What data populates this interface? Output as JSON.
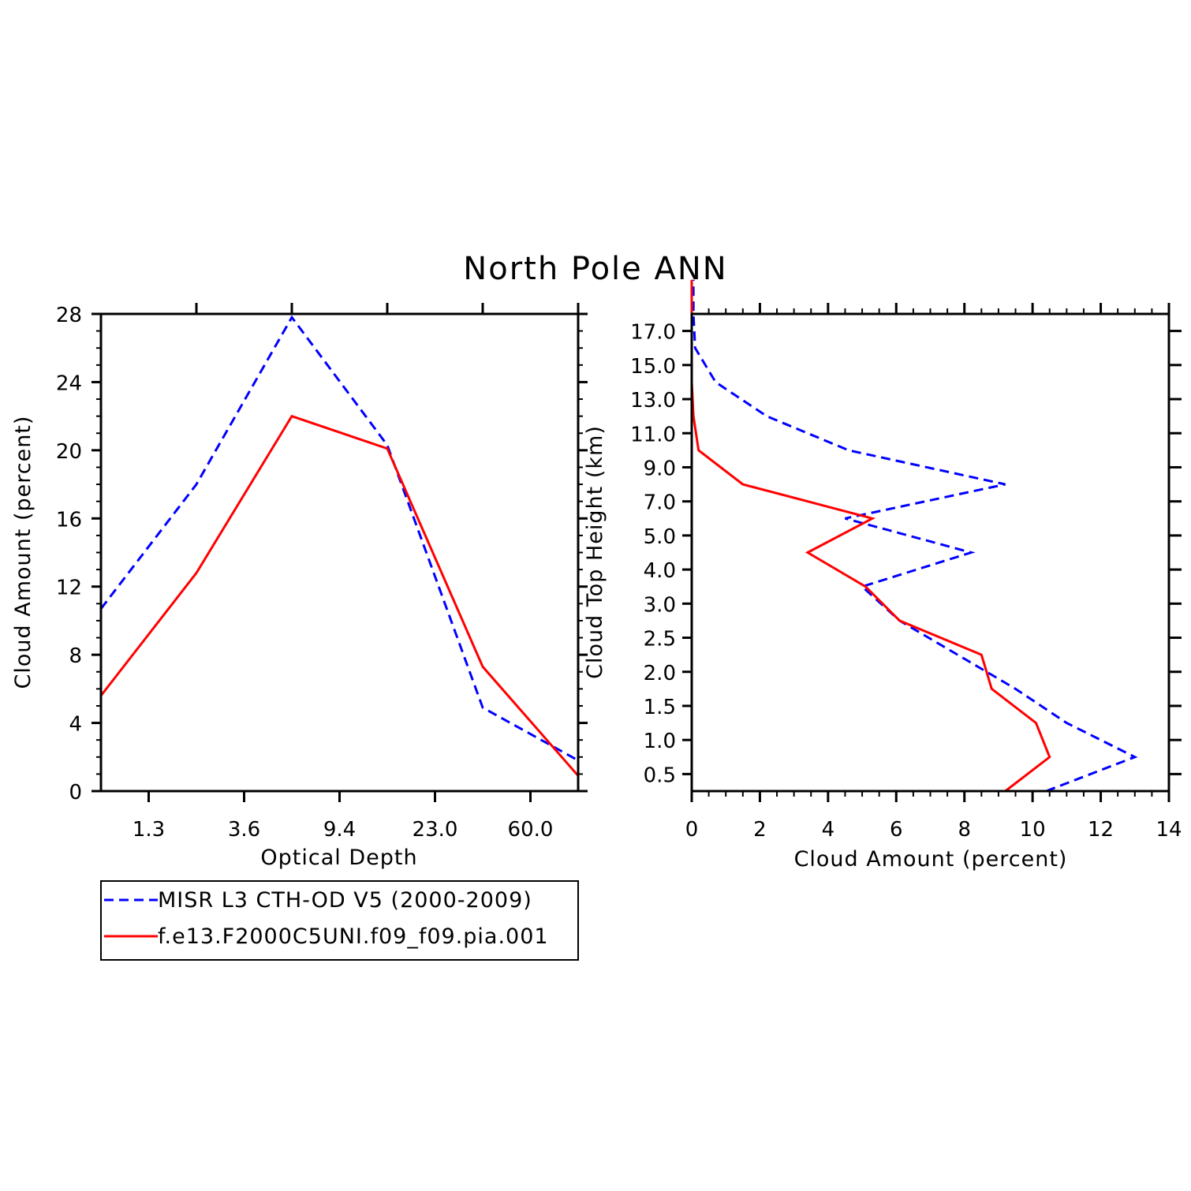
{
  "title": "North Pole ANN",
  "colors": {
    "obs": "#0000ff",
    "model": "#ff0000",
    "axis": "#000000"
  },
  "chart_data": [
    {
      "type": "line",
      "xlabel": "Optical Depth",
      "ylabel": "Cloud Amount (percent)",
      "x_scale": "categorical",
      "xticklabels": [
        "1.3",
        "3.6",
        "9.4",
        "23.0",
        "60.0"
      ],
      "yticks": [
        0,
        4,
        8,
        12,
        16,
        20,
        24,
        28
      ],
      "ylim": [
        0,
        28
      ],
      "series": [
        {
          "name": "MISR L3 CTH-OD V5 (2000-2009)",
          "values": [
            10.7,
            18.0,
            27.8,
            20.3,
            4.9,
            1.8
          ]
        },
        {
          "name": "f.e13.F2000C5UNI.f09_f09.pia.001",
          "values": [
            5.6,
            12.8,
            22.0,
            20.1,
            7.3,
            0.9
          ]
        }
      ]
    },
    {
      "type": "line",
      "xlabel": "Cloud Amount (percent)",
      "ylabel": "Cloud Top Height (km)",
      "xticks": [
        0,
        2,
        4,
        6,
        8,
        10,
        12,
        14
      ],
      "xlim": [
        0,
        14
      ],
      "yticklabels": [
        "0.5",
        "1.0",
        "1.5",
        "2.0",
        "2.5",
        "3.0",
        "4.0",
        "5.0",
        "7.0",
        "9.0",
        "11.0",
        "13.0",
        "15.0",
        "17.0"
      ],
      "series": [
        {
          "name": "MISR L3 CTH-OD V5 (2000-2009)",
          "values": [
            10.4,
            13.0,
            11.0,
            9.5,
            7.8,
            6.1,
            5.0,
            8.2,
            4.5,
            9.2,
            4.6,
            2.2,
            0.7,
            0.1,
            0.05,
            0.05
          ]
        },
        {
          "name": "f.e13.F2000C5UNI.f09_f09.pia.001",
          "values": [
            9.2,
            10.5,
            10.1,
            8.8,
            8.5,
            6.1,
            5.1,
            3.4,
            5.3,
            1.5,
            0.2,
            0.05,
            0.0,
            0.0,
            0.0,
            0.0
          ]
        }
      ]
    }
  ],
  "legend": {
    "entries": [
      {
        "label": "MISR L3 CTH-OD V5 (2000-2009)"
      },
      {
        "label": "f.e13.F2000C5UNI.f09_f09.pia.001"
      }
    ]
  }
}
